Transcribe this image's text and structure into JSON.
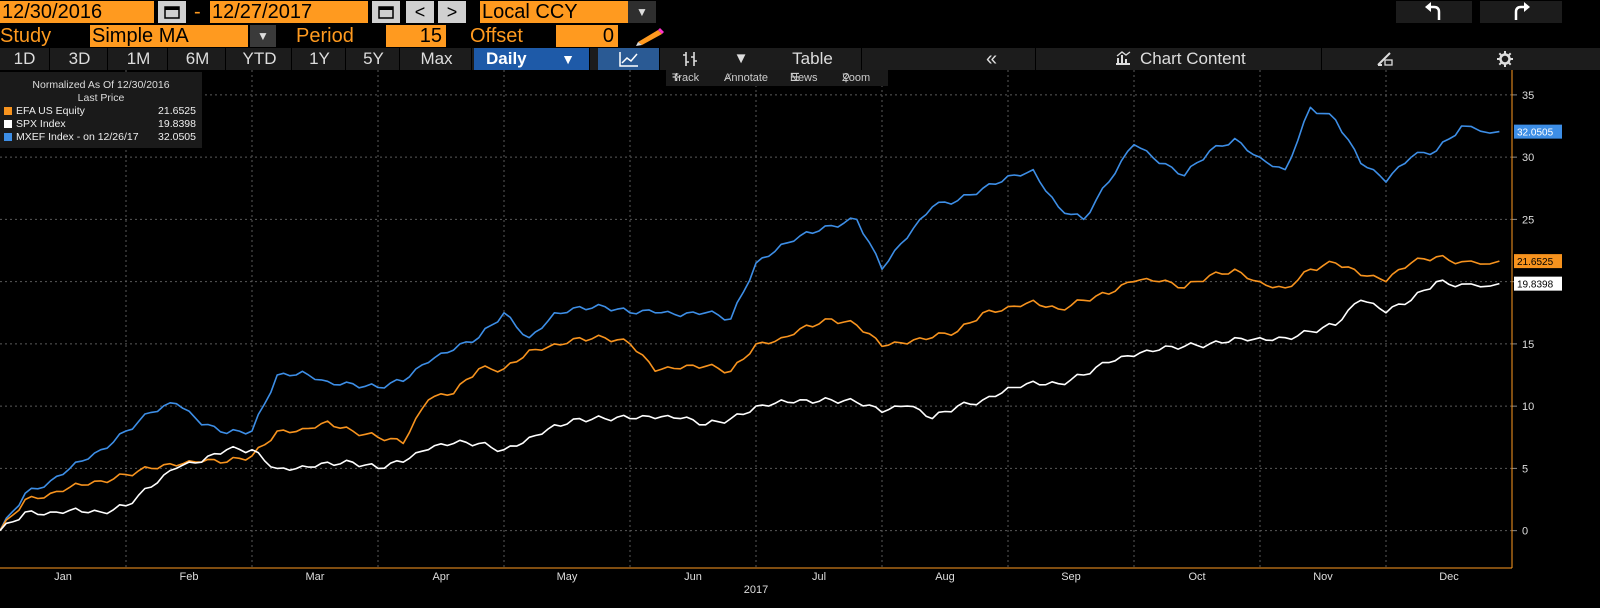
{
  "header": {
    "start_date": "12/30/2016",
    "end_date": "12/27/2017",
    "date_sep": "-",
    "prev_label": "<",
    "next_label": ">",
    "currency": "Local CCY",
    "undo_icon": "undo-icon",
    "redo_icon": "redo-icon"
  },
  "study": {
    "label": "Study",
    "value": "Simple MA",
    "period_label": "Period",
    "period_value": "15",
    "offset_label": "Offset",
    "offset_value": "0"
  },
  "tabs": {
    "ranges": [
      "1D",
      "3D",
      "1M",
      "6M",
      "YTD",
      "1Y",
      "5Y",
      "Max"
    ],
    "frequency": "Daily",
    "table_label": "Table",
    "collapse_label": "«",
    "chart_content_label": "Chart Content"
  },
  "toolbar": {
    "track": "Track",
    "annotate": "Annotate",
    "news": "News",
    "zoom": "Zoom"
  },
  "legend": {
    "header1": "Normalized As Of 12/30/2016",
    "header2": "Last Price",
    "items": [
      {
        "label": "EFA US Equity",
        "value": "21.6525",
        "color": "#f7931e"
      },
      {
        "label": "SPX Index",
        "value": "19.8398",
        "color": "#ffffff"
      },
      {
        "label": "MXEF Index -  on 12/26/17",
        "value": "32.0505",
        "color": "#3d8ee6"
      }
    ]
  },
  "chart_data": {
    "type": "line",
    "title": "",
    "xlabel": "2017",
    "ylabel": "",
    "ylim": [
      -3,
      37
    ],
    "yticks": [
      0,
      5,
      10,
      15,
      20,
      25,
      30,
      35
    ],
    "x_ticks": [
      "Jan",
      "Feb",
      "Mar",
      "Apr",
      "May",
      "Jun",
      "Jul",
      "Aug",
      "Sep",
      "Oct",
      "Nov",
      "Dec"
    ],
    "x_unit": "months since 12/30/2016",
    "grid": true,
    "series": [
      {
        "name": "MXEF Index",
        "color": "#3d8ee6",
        "last_label": "32.0505",
        "x": [
          0,
          0.2,
          0.4,
          0.6,
          0.8,
          1.0,
          1.2,
          1.4,
          1.6,
          1.8,
          2.0,
          2.2,
          2.4,
          2.6,
          2.8,
          3.0,
          3.2,
          3.4,
          3.6,
          3.8,
          4.0,
          4.2,
          4.4,
          4.6,
          4.8,
          5.0,
          5.2,
          5.4,
          5.6,
          5.8,
          6.0,
          6.2,
          6.4,
          6.6,
          6.8,
          7.0,
          7.2,
          7.4,
          7.6,
          7.8,
          8.0,
          8.2,
          8.4,
          8.6,
          8.8,
          9.0,
          9.2,
          9.4,
          9.6,
          9.8,
          10.0,
          10.2,
          10.4,
          10.6,
          10.8,
          11.0,
          11.2,
          11.4,
          11.6,
          11.9
        ],
        "y": [
          0,
          3.0,
          4.0,
          5.5,
          6.5,
          8.0,
          9.5,
          10.2,
          8.5,
          7.8,
          8.0,
          12.5,
          12.8,
          12.0,
          11.8,
          11.5,
          12.0,
          13.5,
          14.5,
          15.5,
          17.5,
          15.5,
          17.5,
          18.0,
          18.0,
          17.5,
          17.5,
          17.2,
          17.5,
          17.0,
          21.5,
          23.0,
          24.0,
          24.5,
          25.0,
          21.0,
          23.5,
          26.0,
          26.5,
          27.5,
          28.5,
          29.0,
          26.0,
          25.0,
          28.0,
          31.0,
          29.5,
          28.5,
          30.5,
          31.5,
          30.0,
          29.0,
          34.0,
          33.0,
          29.5,
          28.0,
          30.0,
          30.5,
          32.5,
          32.05
        ]
      },
      {
        "name": "EFA US Equity",
        "color": "#f7931e",
        "last_label": "21.6525",
        "x": [
          0,
          0.2,
          0.4,
          0.6,
          0.8,
          1.0,
          1.2,
          1.4,
          1.6,
          1.8,
          2.0,
          2.2,
          2.4,
          2.6,
          2.8,
          3.0,
          3.2,
          3.4,
          3.6,
          3.8,
          4.0,
          4.2,
          4.4,
          4.6,
          4.8,
          5.0,
          5.2,
          5.4,
          5.6,
          5.8,
          6.0,
          6.2,
          6.4,
          6.6,
          6.8,
          7.0,
          7.2,
          7.4,
          7.6,
          7.8,
          8.0,
          8.2,
          8.4,
          8.6,
          8.8,
          9.0,
          9.2,
          9.4,
          9.6,
          9.8,
          10.0,
          10.2,
          10.4,
          10.6,
          10.8,
          11.0,
          11.2,
          11.4,
          11.6,
          11.9
        ],
        "y": [
          0,
          2.5,
          3.0,
          3.8,
          4.0,
          4.5,
          5.0,
          5.2,
          5.5,
          5.5,
          6.0,
          8.0,
          8.2,
          8.8,
          8.0,
          7.5,
          7.0,
          10.5,
          11.0,
          13.0,
          13.0,
          14.5,
          15.0,
          15.5,
          15.5,
          15.0,
          12.8,
          13.0,
          13.2,
          12.8,
          15.0,
          15.5,
          16.5,
          17.0,
          16.5,
          14.8,
          15.0,
          15.5,
          16.0,
          17.5,
          18.0,
          18.5,
          17.8,
          18.5,
          19.0,
          20.0,
          20.0,
          19.5,
          20.5,
          21.0,
          20.0,
          19.5,
          21.0,
          21.5,
          20.5,
          20.0,
          21.5,
          22.0,
          21.6,
          21.65
        ]
      },
      {
        "name": "SPX Index",
        "color": "#ffffff",
        "last_label": "19.8398",
        "x": [
          0,
          0.2,
          0.4,
          0.6,
          0.8,
          1.0,
          1.2,
          1.4,
          1.6,
          1.8,
          2.0,
          2.2,
          2.4,
          2.6,
          2.8,
          3.0,
          3.2,
          3.4,
          3.6,
          3.8,
          4.0,
          4.2,
          4.4,
          4.6,
          4.8,
          5.0,
          5.2,
          5.4,
          5.6,
          5.8,
          6.0,
          6.2,
          6.4,
          6.6,
          6.8,
          7.0,
          7.2,
          7.4,
          7.6,
          7.8,
          8.0,
          8.2,
          8.4,
          8.6,
          8.8,
          9.0,
          9.2,
          9.4,
          9.6,
          9.8,
          10.0,
          10.2,
          10.4,
          10.6,
          10.8,
          11.0,
          11.2,
          11.4,
          11.6,
          11.9
        ],
        "y": [
          0,
          1.5,
          1.5,
          1.8,
          1.5,
          2.0,
          3.5,
          5.0,
          5.5,
          6.5,
          6.5,
          5.0,
          5.2,
          5.5,
          5.5,
          5.0,
          5.5,
          6.5,
          7.0,
          7.0,
          6.5,
          7.5,
          8.5,
          9.0,
          9.0,
          9.0,
          9.0,
          9.0,
          8.5,
          9.0,
          10.0,
          10.5,
          10.5,
          10.5,
          10.3,
          9.5,
          10.0,
          9.0,
          10.0,
          10.5,
          11.5,
          12.0,
          11.8,
          12.5,
          13.5,
          14.0,
          14.5,
          14.8,
          15.0,
          15.5,
          15.5,
          15.5,
          16.0,
          16.5,
          18.5,
          17.5,
          18.5,
          20.0,
          19.8,
          19.84
        ]
      }
    ]
  }
}
